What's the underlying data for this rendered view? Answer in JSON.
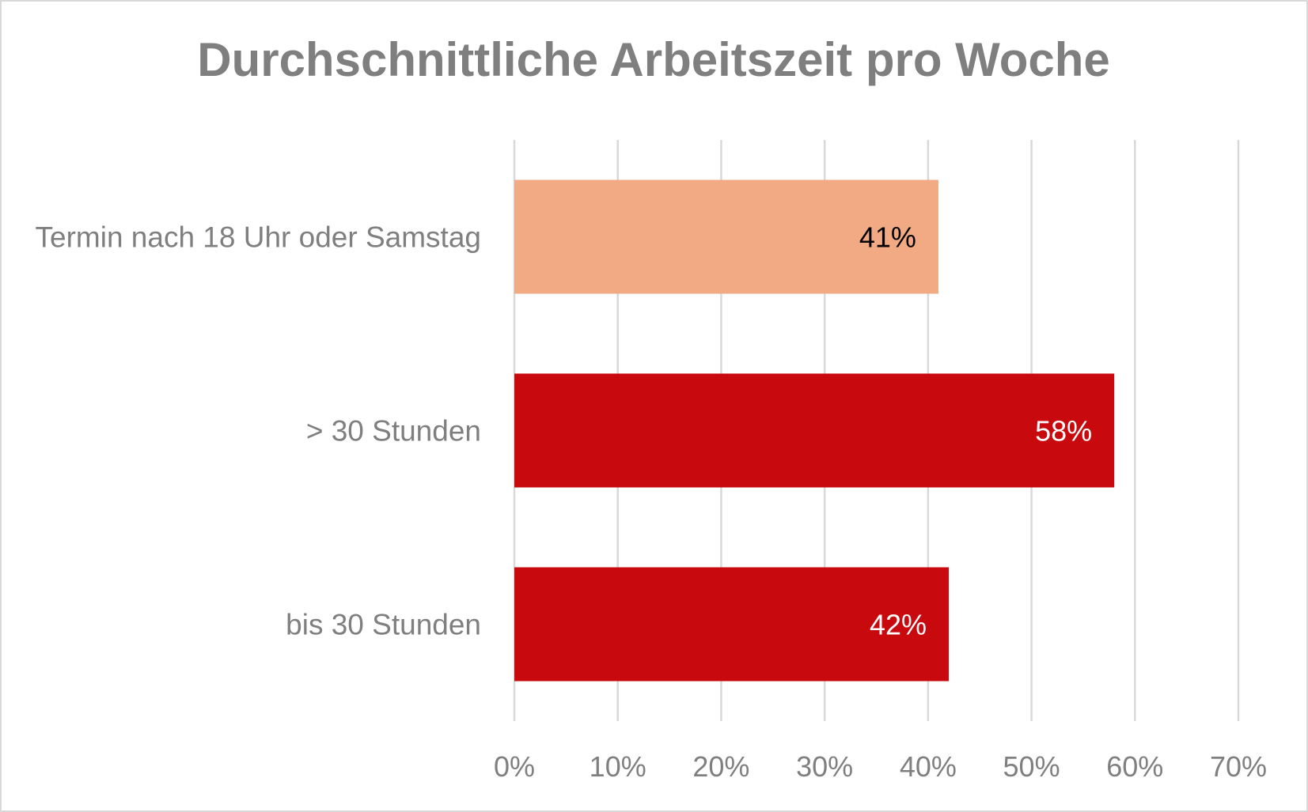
{
  "chart_data": {
    "type": "bar",
    "orientation": "horizontal",
    "title": "Durchschnittliche Arbeitszeit pro Woche",
    "categories": [
      "Termin nach 18 Uhr oder Samstag",
      "> 30 Stunden",
      "bis 30 Stunden"
    ],
    "values": [
      41,
      58,
      42
    ],
    "data_labels": [
      "41%",
      "58%",
      "42%"
    ],
    "bar_colors": [
      "#F2AA84",
      "#C8090E",
      "#C8090E"
    ],
    "label_colors": [
      "#000000",
      "#FFFFFF",
      "#FFFFFF"
    ],
    "xlim": [
      0,
      70
    ],
    "xticks": [
      0,
      10,
      20,
      30,
      40,
      50,
      60,
      70
    ],
    "xtick_labels": [
      "0%",
      "10%",
      "20%",
      "30%",
      "40%",
      "50%",
      "60%",
      "70%"
    ],
    "xlabel": "",
    "ylabel": "",
    "grid": true,
    "legend": "none"
  }
}
